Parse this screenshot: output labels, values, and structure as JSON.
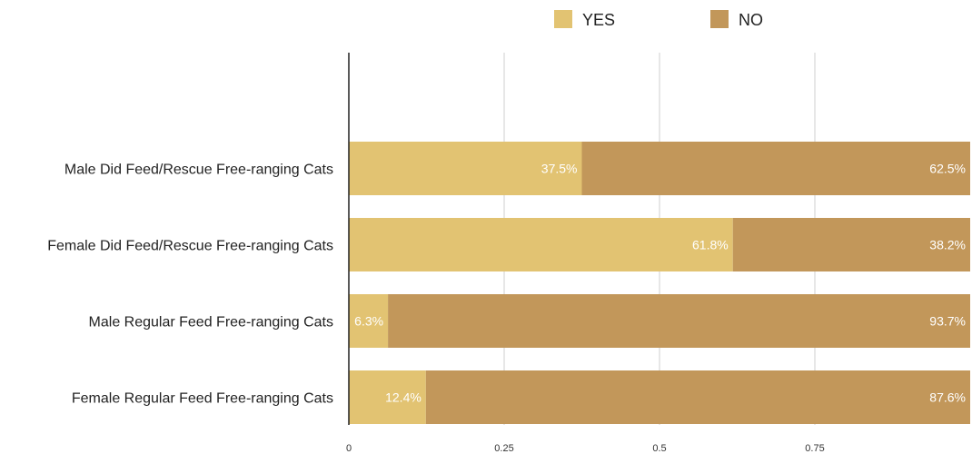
{
  "chart_data": {
    "type": "bar",
    "orientation": "horizontal",
    "stacked": true,
    "categories": [
      "Male Did Feed/Rescue Free-ranging Cats",
      "Female Did Feed/Rescue Free-ranging Cats",
      "Male Regular Feed Free-ranging Cats",
      "Female Regular Feed Free-ranging Cats"
    ],
    "series": [
      {
        "name": "YES",
        "color": "#E2C372",
        "values": [
          0.375,
          0.618,
          0.063,
          0.124
        ],
        "labels": [
          "37.5%",
          "61.8%",
          "6.3%",
          "12.4%"
        ]
      },
      {
        "name": "NO",
        "color": "#C2975A",
        "values": [
          0.625,
          0.382,
          0.937,
          0.876
        ],
        "labels": [
          "62.5%",
          "38.2%",
          "93.7%",
          "87.6%"
        ]
      }
    ],
    "xticks": [
      "0",
      "0.25",
      "0.5",
      "0.75"
    ],
    "xtick_values": [
      0,
      0.25,
      0.5,
      0.75
    ],
    "xlim": [
      0,
      1
    ],
    "grid": true,
    "legend": "top-center"
  }
}
